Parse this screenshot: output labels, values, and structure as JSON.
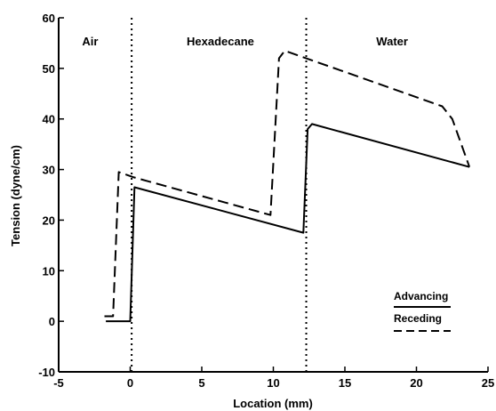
{
  "chart_data": {
    "type": "line",
    "xlabel": "Location (mm)",
    "ylabel": "Tension (dyne/cm)",
    "xlim": [
      -5,
      25
    ],
    "ylim": [
      -10,
      60
    ],
    "xticks": [
      -5,
      0,
      5,
      10,
      15,
      20,
      25
    ],
    "yticks": [
      -10,
      0,
      10,
      20,
      30,
      40,
      50,
      60
    ],
    "xtick_labels": [
      "-5",
      "0",
      "5",
      "10",
      "15",
      "20",
      "25"
    ],
    "ytick_labels": [
      "-10",
      "0",
      "10",
      "20",
      "30",
      "40",
      "50",
      "60"
    ],
    "grid": false,
    "legend_position": "bottom-right",
    "regions": [
      {
        "label": "Air",
        "x": -2.8
      },
      {
        "label": "Hexadecane",
        "x": 6.3
      },
      {
        "label": "Water",
        "x": 18.3
      }
    ],
    "boundaries": [
      0.1,
      12.3
    ],
    "series": [
      {
        "name": "Advancing",
        "style": "solid",
        "x": [
          -1.7,
          0.0,
          0.3,
          12.1,
          12.4,
          12.7,
          23.7
        ],
        "y": [
          0,
          0,
          26.5,
          17.5,
          38,
          39,
          30.5
        ]
      },
      {
        "name": "Receding",
        "style": "dashed",
        "x": [
          -1.8,
          -1.2,
          -0.8,
          0.2,
          9.8,
          10.4,
          10.8,
          21.8,
          22.5,
          23.7
        ],
        "y": [
          1,
          1,
          29.5,
          28.5,
          21,
          52,
          53.5,
          42.5,
          40,
          30.5
        ]
      }
    ]
  }
}
